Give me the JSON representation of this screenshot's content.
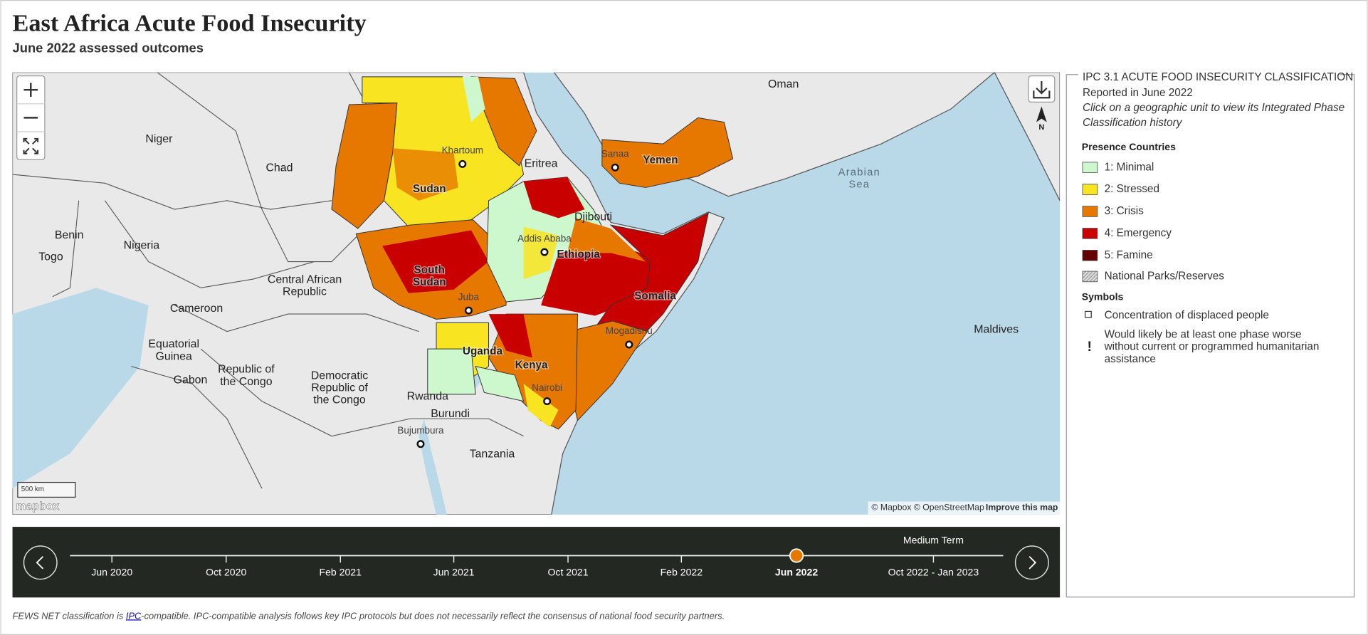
{
  "header": {
    "title": "East Africa Acute Food Insecurity",
    "subtitle": "June 2022 assessed outcomes"
  },
  "map": {
    "labels": [
      [
        "Niger"
      ],
      [
        "Chad"
      ],
      [
        "Nigeria"
      ],
      [
        "Benin"
      ],
      [
        "Togo"
      ],
      [
        "Central African",
        "Republic"
      ],
      [
        "Cameroon"
      ],
      [
        "Equatorial",
        "Guinea"
      ],
      [
        "Gabon"
      ],
      [
        "Republic of",
        "the Congo"
      ],
      [
        "Democratic",
        "Republic of",
        "the Congo"
      ],
      [
        "Rwanda"
      ],
      [
        "Burundi"
      ],
      [
        "Bujumbura"
      ],
      [
        "Tanzania"
      ],
      [
        "Sudan"
      ],
      [
        "Khartoum"
      ],
      [
        "Eritrea"
      ],
      [
        "Sanaa"
      ],
      [
        "Yemen"
      ],
      [
        "Djibouti"
      ],
      [
        "Addis Ababa"
      ],
      [
        "Ethiopia"
      ],
      [
        "South",
        "Sudan"
      ],
      [
        "Juba"
      ],
      [
        "Somalia"
      ],
      [
        "Mogadishu"
      ],
      [
        "Uganda"
      ],
      [
        "Kenya"
      ],
      [
        "Nairobi"
      ],
      [
        "Oman"
      ],
      [
        "Arabian",
        "Sea"
      ],
      [
        "Maldives"
      ]
    ],
    "scale": "500 km",
    "logo": "mapbox",
    "north": "N",
    "attribution": "© Mapbox © OpenStreetMap",
    "improve": "Improve this map"
  },
  "legend": {
    "title": "IPC 3.1 ACUTE FOOD INSECURITY CLASSIFICATION",
    "reported": "Reported in June 2022",
    "hint": [
      "Click on a geographic unit to view its Integrated Phase",
      "Classification history"
    ],
    "presence_heading": "Presence Countries",
    "phases": [
      {
        "label": "1: Minimal",
        "color": "#cdf7cd"
      },
      {
        "label": "2: Stressed",
        "color": "#f8e420"
      },
      {
        "label": "3: Crisis",
        "color": "#e67800"
      },
      {
        "label": "4: Emergency",
        "color": "#c80000"
      },
      {
        "label": "5: Famine",
        "color": "#640000"
      }
    ],
    "parks": "National Parks/Reserves",
    "symbols_heading": "Symbols",
    "displaced": "Concentration of displaced people",
    "worse_mark": "!",
    "worse": [
      "Would likely be at least one phase worse",
      "without current or programmed humanitarian",
      "assistance"
    ]
  },
  "timeline": {
    "term": "Medium Term",
    "dates": [
      "Jun 2020",
      "Oct 2020",
      "Feb 2021",
      "Jun 2021",
      "Oct 2021",
      "Feb 2022",
      "Jun 2022",
      "Oct 2022 - Jan 2023"
    ],
    "selected": 6
  },
  "footer": {
    "before": "FEWS NET classification is ",
    "link": "IPC",
    "after": "-compatible. IPC-compatible analysis follows key IPC protocols but does not necessarily reflect the consensus of national food security partners."
  }
}
